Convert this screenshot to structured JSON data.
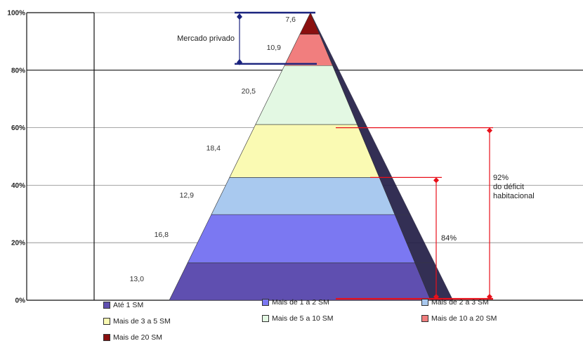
{
  "chart_data": {
    "type": "bar",
    "style": "stacked-pyramid",
    "ylim": [
      0,
      100
    ],
    "yticks": [
      "0%",
      "20%",
      "40%",
      "60%",
      "80%",
      "100%"
    ],
    "ytick_values": [
      0,
      20,
      40,
      60,
      80,
      100
    ],
    "grid": true,
    "series": [
      {
        "name": "Até 1 SM",
        "value": 13.0,
        "label": "13,0",
        "color": "#5f4fb0"
      },
      {
        "name": "Mais de 1 a 2 SM",
        "value": 16.8,
        "label": "16,8",
        "color": "#7b78f2"
      },
      {
        "name": "Mais de 2 a 3 SM",
        "value": 12.9,
        "label": "12,9",
        "color": "#a9c9ef"
      },
      {
        "name": "Mais de 3 a 5 SM",
        "value": 18.4,
        "label": "18,4",
        "color": "#fafab3"
      },
      {
        "name": "Mais de 5 a 10 SM",
        "value": 20.5,
        "label": "20,5",
        "color": "#e3f8e3"
      },
      {
        "name": "Mais de 10 a 20 SM",
        "value": 10.9,
        "label": "10,9",
        "color": "#f17e7e"
      },
      {
        "name": "Mais de 20 SM",
        "value": 7.6,
        "label": "7,6",
        "color": "#8a1010"
      }
    ],
    "annotations": [
      {
        "text": "Mercado privado",
        "from": 80,
        "to": 100,
        "color": "#1a237e"
      },
      {
        "text_lines": [
          "92%",
          "do déficit",
          "habitacional"
        ],
        "from": 0,
        "to": 60,
        "color": "#e8101a"
      },
      {
        "text": "84%",
        "from": 0,
        "to": 42.7,
        "color": "#e8101a"
      }
    ],
    "legend_position": "bottom"
  }
}
